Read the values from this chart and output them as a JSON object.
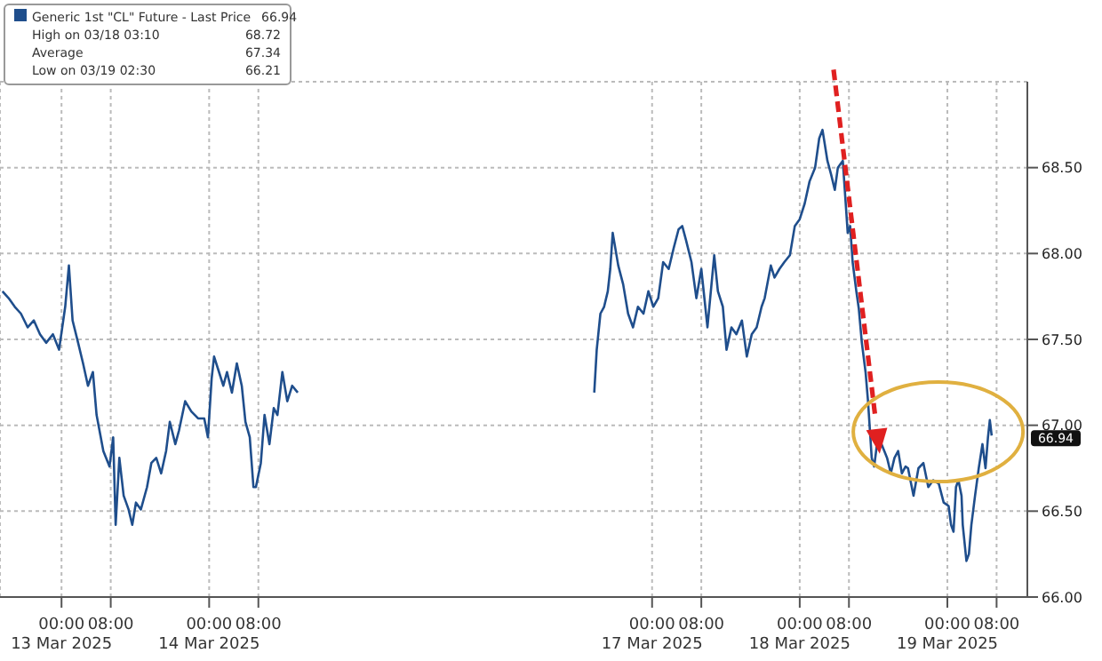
{
  "chart_data": {
    "type": "line",
    "x": [
      "2025-03-12T14:24",
      "2025-03-12T15:24",
      "2025-03-12T16:24",
      "2025-03-12T17:24",
      "2025-03-12T18:30",
      "2025-03-12T19:30",
      "2025-03-12T20:30",
      "2025-03-12T21:30",
      "2025-03-12T22:36",
      "2025-03-12T23:36",
      "2025-03-13T00:36",
      "2025-03-13T01:12",
      "2025-03-13T01:48",
      "2025-03-13T02:42",
      "2025-03-13T03:30",
      "2025-03-13T04:18",
      "2025-03-13T05:06",
      "2025-03-13T05:42",
      "2025-03-13T06:48",
      "2025-03-13T07:48",
      "2025-03-13T08:24",
      "2025-03-13T08:48",
      "2025-03-13T09:24",
      "2025-03-13T10:06",
      "2025-03-13T10:54",
      "2025-03-13T11:30",
      "2025-03-13T12:06",
      "2025-03-13T12:54",
      "2025-03-13T13:54",
      "2025-03-13T14:36",
      "2025-03-13T15:24",
      "2025-03-13T16:12",
      "2025-03-13T17:00",
      "2025-03-13T17:36",
      "2025-03-13T18:30",
      "2025-03-13T19:06",
      "2025-03-13T20:06",
      "2025-03-13T21:06",
      "2025-03-13T22:12",
      "2025-03-13T23:12",
      "2025-03-13T23:48",
      "2025-03-14T00:24",
      "2025-03-14T00:48",
      "2025-03-14T01:36",
      "2025-03-14T02:18",
      "2025-03-14T02:54",
      "2025-03-14T03:42",
      "2025-03-14T04:30",
      "2025-03-14T05:18",
      "2025-03-14T05:54",
      "2025-03-14T06:36",
      "2025-03-14T07:12",
      "2025-03-14T07:36",
      "2025-03-14T08:24",
      "2025-03-14T09:00",
      "2025-03-14T09:48",
      "2025-03-14T10:30",
      "2025-03-14T11:06",
      "2025-03-14T11:54",
      "2025-03-14T12:42",
      "2025-03-14T13:30",
      "2025-03-14T14:24",
      "2025-03-16T14:36",
      "2025-03-16T15:00",
      "2025-03-16T15:36",
      "2025-03-16T16:12",
      "2025-03-16T16:48",
      "2025-03-16T17:12",
      "2025-03-16T17:36",
      "2025-03-16T18:30",
      "2025-03-16T19:18",
      "2025-03-16T20:06",
      "2025-03-16T20:54",
      "2025-03-16T21:42",
      "2025-03-16T22:36",
      "2025-03-16T23:24",
      "2025-03-17T00:12",
      "2025-03-17T01:00",
      "2025-03-17T01:48",
      "2025-03-17T02:42",
      "2025-03-17T03:30",
      "2025-03-17T04:18",
      "2025-03-17T04:54",
      "2025-03-17T05:30",
      "2025-03-17T06:24",
      "2025-03-17T07:12",
      "2025-03-17T08:00",
      "2025-03-17T09:00",
      "2025-03-17T10:06",
      "2025-03-17T10:42",
      "2025-03-17T11:30",
      "2025-03-17T12:06",
      "2025-03-17T12:54",
      "2025-03-17T13:42",
      "2025-03-17T14:36",
      "2025-03-17T15:24",
      "2025-03-17T16:12",
      "2025-03-17T17:00",
      "2025-03-17T17:48",
      "2025-03-17T18:18",
      "2025-03-17T19:18",
      "2025-03-17T19:54",
      "2025-03-17T20:42",
      "2025-03-17T21:30",
      "2025-03-17T22:24",
      "2025-03-17T23:12",
      "2025-03-18T00:00",
      "2025-03-18T00:48",
      "2025-03-18T01:36",
      "2025-03-18T02:30",
      "2025-03-18T03:10",
      "2025-03-18T03:42",
      "2025-03-18T04:30",
      "2025-03-18T05:06",
      "2025-03-18T05:42",
      "2025-03-18T06:12",
      "2025-03-18T07:00",
      "2025-03-18T07:24",
      "2025-03-18T07:48",
      "2025-03-18T08:12",
      "2025-03-18T08:36",
      "2025-03-18T09:12",
      "2025-03-18T09:36",
      "2025-03-18T10:06",
      "2025-03-18T10:42",
      "2025-03-18T11:06",
      "2025-03-18T11:42",
      "2025-03-18T12:06",
      "2025-03-18T12:42",
      "2025-03-18T13:18",
      "2025-03-18T14:12",
      "2025-03-18T14:48",
      "2025-03-18T15:24",
      "2025-03-18T16:00",
      "2025-03-18T16:36",
      "2025-03-18T17:12",
      "2025-03-18T17:36",
      "2025-03-18T18:30",
      "2025-03-18T19:18",
      "2025-03-18T20:06",
      "2025-03-18T20:54",
      "2025-03-18T21:42",
      "2025-03-18T22:36",
      "2025-03-18T23:24",
      "2025-03-19T00:12",
      "2025-03-19T00:36",
      "2025-03-19T01:00",
      "2025-03-19T01:24",
      "2025-03-19T01:48",
      "2025-03-19T02:18",
      "2025-03-19T02:30",
      "2025-03-19T03:06",
      "2025-03-19T03:30",
      "2025-03-19T03:54",
      "2025-03-19T04:30",
      "2025-03-19T05:06",
      "2025-03-19T05:42",
      "2025-03-19T06:12",
      "2025-03-19T06:36",
      "2025-03-19T06:54",
      "2025-03-19T07:12"
    ],
    "series": [
      {
        "name": "Generic 1st \"CL\" Future - Last Price",
        "color": "#1f4e8c",
        "values": [
          67.78,
          67.74,
          67.69,
          67.65,
          67.57,
          67.61,
          67.53,
          67.48,
          67.53,
          67.44,
          67.69,
          67.93,
          67.61,
          67.48,
          67.36,
          67.23,
          67.31,
          67.06,
          66.85,
          66.76,
          66.93,
          66.42,
          66.81,
          66.59,
          66.51,
          66.42,
          66.55,
          66.51,
          66.64,
          66.78,
          66.81,
          66.72,
          66.85,
          67.02,
          66.89,
          66.97,
          67.14,
          67.08,
          67.04,
          67.04,
          66.93,
          67.27,
          67.4,
          67.31,
          67.23,
          67.31,
          67.19,
          67.36,
          67.23,
          67.02,
          66.93,
          66.64,
          66.64,
          66.78,
          67.06,
          66.89,
          67.1,
          67.06,
          67.31,
          67.14,
          67.23,
          67.19,
          67.19,
          67.44,
          67.65,
          67.69,
          67.78,
          67.91,
          68.12,
          67.93,
          67.82,
          67.65,
          67.57,
          67.69,
          67.65,
          67.78,
          67.69,
          67.74,
          67.95,
          67.91,
          68.03,
          68.14,
          68.16,
          68.08,
          67.95,
          67.74,
          67.91,
          67.57,
          67.99,
          67.78,
          67.69,
          67.44,
          67.57,
          67.53,
          67.61,
          67.4,
          67.53,
          67.57,
          67.69,
          67.74,
          67.93,
          67.86,
          67.91,
          67.95,
          67.99,
          68.16,
          68.2,
          68.29,
          68.42,
          68.5,
          68.67,
          68.72,
          68.54,
          68.46,
          68.37,
          68.5,
          68.54,
          68.33,
          68.12,
          68.16,
          67.95,
          67.78,
          67.68,
          67.48,
          67.31,
          67.14,
          66.81,
          66.76,
          66.93,
          66.89,
          66.81,
          66.72,
          66.81,
          66.85,
          66.72,
          66.76,
          66.75,
          66.59,
          66.75,
          66.78,
          66.64,
          66.68,
          66.66,
          66.55,
          66.53,
          66.42,
          66.38,
          66.64,
          66.68,
          66.59,
          66.42,
          66.21,
          66.25,
          66.42,
          66.59,
          66.75,
          66.89,
          66.75,
          66.93,
          67.03,
          66.94
        ]
      }
    ],
    "xlim": [
      "2025-03-12T14:00",
      "2025-03-19T13:00"
    ],
    "xticks": [
      {
        "value": "2025-03-13T00:00",
        "label": "00:00\n13 Mar 2025"
      },
      {
        "value": "2025-03-13T08:00",
        "label": "08:00"
      },
      {
        "value": "2025-03-14T00:00",
        "label": "00:00\n14 Mar 2025"
      },
      {
        "value": "2025-03-14T08:00",
        "label": "08:00"
      },
      {
        "value": "2025-03-17T00:00",
        "label": "00:00\n17 Mar 2025"
      },
      {
        "value": "2025-03-17T08:00",
        "label": "08:00"
      },
      {
        "value": "2025-03-18T00:00",
        "label": "00:00\n18 Mar 2025"
      },
      {
        "value": "2025-03-18T08:00",
        "label": "08:00"
      },
      {
        "value": "2025-03-19T00:00",
        "label": "00:00\n19 Mar 2025"
      },
      {
        "value": "2025-03-19T08:00",
        "label": "08:00"
      }
    ],
    "ylim": [
      66,
      69
    ],
    "yticks": [
      {
        "value": 66,
        "label": "66.00"
      },
      {
        "value": 66.5,
        "label": "66.50"
      },
      {
        "value": 67,
        "label": "67.00"
      },
      {
        "value": 67.5,
        "label": "67.50"
      },
      {
        "value": 68,
        "label": "68.00"
      },
      {
        "value": 68.5,
        "label": "68.50"
      }
    ],
    "grid": true,
    "legend": "top left",
    "annotations": [
      "66.94",
      "High on 03/18 03:10 68.72",
      "Average 67.34",
      "Low on 03/19 02:30 66.21"
    ]
  }
}
